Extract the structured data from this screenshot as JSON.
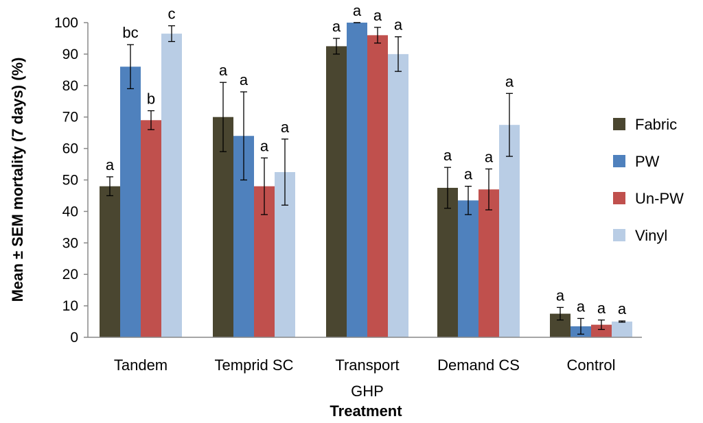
{
  "chart_data": {
    "type": "bar",
    "title": "",
    "xlabel": "Treatment",
    "ylabel": "Mean ± SEM mortality (7 days) (%)",
    "ylim": [
      0,
      100
    ],
    "yticks": [
      0,
      10,
      20,
      30,
      40,
      50,
      60,
      70,
      80,
      90,
      100
    ],
    "grid": false,
    "legend_position": "right",
    "categories": [
      [
        "Tandem"
      ],
      [
        "Temprid SC"
      ],
      [
        "Transport",
        "GHP"
      ],
      [
        "Demand CS"
      ],
      [
        "Control"
      ]
    ],
    "series": [
      {
        "name": "Fabric",
        "color": "#4a4630",
        "values": [
          48,
          70,
          92.5,
          47.5,
          7.5
        ],
        "sem": [
          3,
          11,
          2.5,
          6.5,
          2
        ],
        "letters": [
          "a",
          "a",
          "a",
          "a",
          "a"
        ]
      },
      {
        "name": "PW",
        "color": "#4f81bd",
        "values": [
          86,
          64,
          100,
          43.5,
          3.5
        ],
        "sem": [
          7,
          14,
          0,
          4.5,
          2.5
        ],
        "letters": [
          "bc",
          "a",
          "a",
          "a",
          "a"
        ]
      },
      {
        "name": "Un-PW",
        "color": "#c0504d",
        "values": [
          69,
          48,
          96,
          47,
          4
        ],
        "sem": [
          3,
          9,
          2.5,
          6.5,
          1.5
        ],
        "letters": [
          "b",
          "a",
          "a",
          "a",
          "a"
        ]
      },
      {
        "name": "Vinyl",
        "color": "#b9cde5",
        "values": [
          96.5,
          52.5,
          90,
          67.5,
          5
        ],
        "sem": [
          2.5,
          10.5,
          5.5,
          10,
          0.2
        ],
        "letters": [
          "c",
          "a",
          "a",
          "a",
          "a"
        ]
      }
    ]
  }
}
